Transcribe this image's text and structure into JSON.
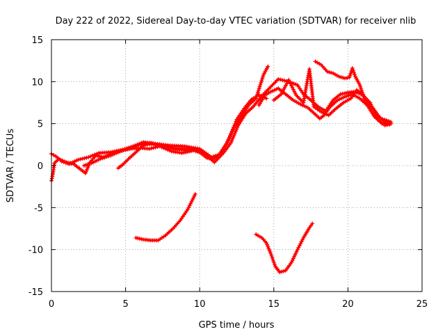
{
  "chart_data": {
    "type": "scatter",
    "title": "Day 222 of 2022, Sidereal Day-to-day VTEC variation (SDTVAR) for receiver nlib",
    "xlabel": "GPS time / hours",
    "ylabel": "SDTVAR / TECUs",
    "xlim": [
      0,
      25
    ],
    "ylim": [
      -15,
      15
    ],
    "xticks": [
      0,
      5,
      10,
      15,
      20,
      25
    ],
    "yticks": [
      -15,
      -10,
      -5,
      0,
      5,
      10,
      15
    ],
    "grid": true,
    "marker": "+",
    "color": "#ff0000",
    "series": [
      {
        "name": "arc-1",
        "points": [
          [
            0,
            -1.8
          ],
          [
            0.1,
            -1.0
          ],
          [
            0.2,
            0.3
          ],
          [
            0.5,
            0.8
          ],
          [
            1.0,
            0.4
          ],
          [
            1.5,
            0.2
          ],
          [
            2.0,
            -0.5
          ],
          [
            2.3,
            -0.9
          ],
          [
            2.6,
            0.4
          ],
          [
            3.0,
            1.2
          ],
          [
            3.5,
            1.0
          ],
          [
            4.0,
            1.4
          ],
          [
            4.5,
            1.6
          ],
          [
            5.0,
            1.9
          ],
          [
            5.5,
            2.2
          ],
          [
            6.0,
            2.5
          ],
          [
            6.5,
            2.6
          ],
          [
            7.0,
            2.5
          ],
          [
            7.5,
            2.3
          ],
          [
            8.0,
            2.2
          ],
          [
            8.5,
            2.0
          ],
          [
            9.0,
            1.9
          ],
          [
            9.5,
            2.0
          ],
          [
            10.0,
            1.6
          ],
          [
            10.5,
            0.9
          ],
          [
            11.0,
            0.8
          ],
          [
            11.5,
            1.6
          ],
          [
            12.0,
            3.2
          ],
          [
            12.5,
            5.5
          ],
          [
            13.0,
            6.8
          ],
          [
            13.5,
            7.9
          ],
          [
            14.0,
            8.4
          ],
          [
            14.5,
            8.0
          ]
        ]
      },
      {
        "name": "arc-2",
        "points": [
          [
            0,
            1.4
          ],
          [
            0.3,
            1.1
          ],
          [
            0.7,
            0.5
          ],
          [
            1.2,
            0.2
          ],
          [
            1.8,
            0.7
          ],
          [
            2.5,
            1.0
          ],
          [
            3.2,
            1.5
          ],
          [
            4.0,
            1.6
          ],
          [
            4.8,
            1.9
          ],
          [
            5.5,
            2.3
          ],
          [
            6.2,
            2.8
          ],
          [
            7.0,
            2.6
          ],
          [
            8.0,
            2.4
          ],
          [
            9.0,
            2.3
          ],
          [
            10.0,
            2.0
          ],
          [
            10.8,
            1.0
          ],
          [
            11.3,
            1.3
          ],
          [
            11.8,
            2.6
          ],
          [
            12.3,
            4.5
          ],
          [
            12.8,
            5.8
          ],
          [
            13.3,
            7.2
          ],
          [
            13.8,
            8.0
          ],
          [
            14.3,
            10.8
          ],
          [
            14.6,
            11.8
          ]
        ]
      },
      {
        "name": "arc-3",
        "points": [
          [
            2.2,
            0.0
          ],
          [
            2.7,
            0.3
          ],
          [
            3.3,
            0.8
          ],
          [
            4.0,
            1.2
          ],
          [
            4.6,
            1.7
          ],
          [
            5.3,
            2.0
          ],
          [
            6.0,
            2.1
          ],
          [
            6.6,
            2.0
          ],
          [
            7.3,
            2.3
          ],
          [
            8.1,
            1.7
          ],
          [
            8.8,
            1.5
          ],
          [
            9.6,
            1.8
          ],
          [
            10.4,
            1.3
          ],
          [
            11.0,
            0.4
          ],
          [
            11.6,
            1.5
          ],
          [
            12.1,
            2.7
          ],
          [
            12.6,
            4.8
          ],
          [
            13.1,
            6.2
          ],
          [
            13.6,
            7.0
          ],
          [
            14.2,
            8.3
          ],
          [
            14.8,
            9.4
          ],
          [
            15.3,
            10.3
          ],
          [
            16.0,
            10.0
          ],
          [
            16.6,
            9.6
          ],
          [
            17.0,
            8.5
          ],
          [
            17.5,
            7.8
          ],
          [
            18.0,
            7.0
          ],
          [
            18.5,
            6.5
          ],
          [
            19.0,
            7.8
          ],
          [
            19.5,
            8.5
          ],
          [
            20.0,
            8.7
          ],
          [
            20.5,
            8.8
          ],
          [
            21.0,
            8.4
          ],
          [
            21.5,
            7.5
          ],
          [
            22.0,
            5.5
          ],
          [
            22.5,
            4.8
          ],
          [
            22.9,
            5.0
          ]
        ]
      },
      {
        "name": "arc-4",
        "points": [
          [
            4.5,
            -0.3
          ],
          [
            4.8,
            0.1
          ],
          [
            5.2,
            0.8
          ],
          [
            5.7,
            1.6
          ],
          [
            6.2,
            2.4
          ],
          [
            6.7,
            2.7
          ],
          [
            7.3,
            2.5
          ],
          [
            7.9,
            2.1
          ],
          [
            8.5,
            1.9
          ],
          [
            9.1,
            2.0
          ],
          [
            9.8,
            1.9
          ],
          [
            10.5,
            1.2
          ]
        ]
      },
      {
        "name": "arc-5",
        "points": [
          [
            14.0,
            7.2
          ],
          [
            14.4,
            8.4
          ],
          [
            14.8,
            8.8
          ],
          [
            15.3,
            9.2
          ],
          [
            15.8,
            8.5
          ],
          [
            16.3,
            7.8
          ],
          [
            16.8,
            7.3
          ],
          [
            17.3,
            6.9
          ],
          [
            17.8,
            6.1
          ],
          [
            18.1,
            5.6
          ],
          [
            18.4,
            6.0
          ],
          [
            18.8,
            7.0
          ],
          [
            19.3,
            7.8
          ],
          [
            19.8,
            8.2
          ],
          [
            20.3,
            8.5
          ],
          [
            20.8,
            8.0
          ],
          [
            21.3,
            7.2
          ],
          [
            21.8,
            5.8
          ],
          [
            22.3,
            5.0
          ],
          [
            22.8,
            4.9
          ]
        ]
      },
      {
        "name": "arc-6",
        "points": [
          [
            15.0,
            7.8
          ],
          [
            15.5,
            8.5
          ],
          [
            16.0,
            10.2
          ],
          [
            16.5,
            8.4
          ],
          [
            17.0,
            7.5
          ],
          [
            17.4,
            11.5
          ],
          [
            17.7,
            7.0
          ],
          [
            18.2,
            6.4
          ],
          [
            18.7,
            6.0
          ],
          [
            19.2,
            6.8
          ],
          [
            19.7,
            7.5
          ],
          [
            20.2,
            8.0
          ],
          [
            20.6,
            9.0
          ],
          [
            21.0,
            8.5
          ],
          [
            21.4,
            7.4
          ],
          [
            21.8,
            6.5
          ],
          [
            22.2,
            5.6
          ],
          [
            22.6,
            5.4
          ],
          [
            22.9,
            5.2
          ]
        ]
      },
      {
        "name": "arc-7",
        "points": [
          [
            17.8,
            12.4
          ],
          [
            18.2,
            12.0
          ],
          [
            18.6,
            11.2
          ],
          [
            19.0,
            11.0
          ],
          [
            19.4,
            10.6
          ],
          [
            19.8,
            10.4
          ],
          [
            20.1,
            10.5
          ],
          [
            20.3,
            11.6
          ],
          [
            20.5,
            10.6
          ],
          [
            20.8,
            9.6
          ],
          [
            21.1,
            8.0
          ],
          [
            21.4,
            7.2
          ],
          [
            21.7,
            6.8
          ],
          [
            22.1,
            5.8
          ],
          [
            22.5,
            5.2
          ],
          [
            22.9,
            5.0
          ]
        ]
      },
      {
        "name": "arc-8",
        "points": [
          [
            5.7,
            -8.6
          ],
          [
            6.2,
            -8.8
          ],
          [
            6.7,
            -8.9
          ],
          [
            7.2,
            -8.9
          ],
          [
            7.7,
            -8.3
          ],
          [
            8.2,
            -7.5
          ],
          [
            8.7,
            -6.5
          ],
          [
            9.2,
            -5.2
          ],
          [
            9.7,
            -3.4
          ]
        ]
      },
      {
        "name": "arc-9",
        "points": [
          [
            13.8,
            -8.2
          ],
          [
            14.2,
            -8.6
          ],
          [
            14.5,
            -9.2
          ],
          [
            14.8,
            -10.5
          ],
          [
            15.1,
            -12.0
          ],
          [
            15.4,
            -12.7
          ],
          [
            15.8,
            -12.5
          ],
          [
            16.2,
            -11.5
          ],
          [
            16.6,
            -10.0
          ],
          [
            17.0,
            -8.6
          ],
          [
            17.4,
            -7.4
          ],
          [
            17.6,
            -6.9
          ]
        ]
      }
    ]
  }
}
